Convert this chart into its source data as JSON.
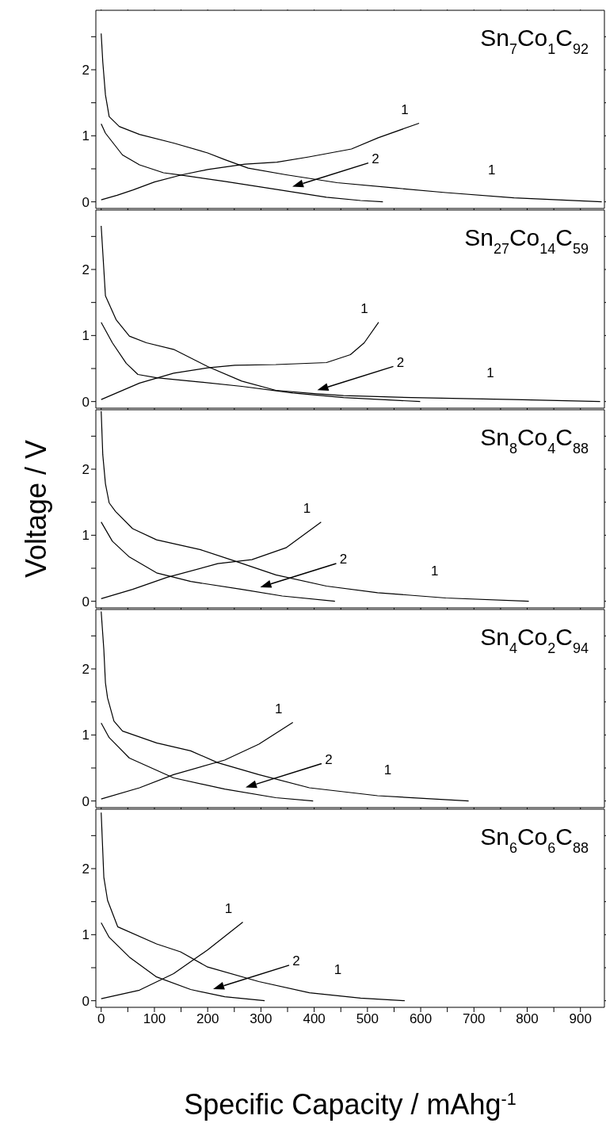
{
  "chart_data": [
    {
      "type": "line",
      "title": "Sn$_{7}$Co$_{1}$C$_{92}$",
      "xlim": [
        -10,
        945
      ],
      "ylim": [
        -0.1,
        2.9
      ],
      "xticks": [
        0,
        {
          "value": 50,
          "label": null
        },
        100,
        {
          "value": 150,
          "label": null
        },
        200,
        {
          "value": 250,
          "label": null
        },
        300,
        {
          "value": 350,
          "label": null
        },
        400,
        {
          "value": 450,
          "label": null
        },
        500,
        {
          "value": 550,
          "label": null
        },
        600,
        {
          "value": 650,
          "label": null
        },
        700,
        {
          "value": 750,
          "label": null
        },
        800,
        {
          "value": 850,
          "label": null
        },
        900
      ],
      "yticks": [
        0,
        {
          "value": 0.5,
          "label": null
        },
        1,
        {
          "value": 1.5,
          "label": null
        },
        2,
        {
          "value": 2.5,
          "label": null
        }
      ],
      "tick_labels": "y",
      "annotations": [
        "2"
      ],
      "series": [
        {
          "name": "1",
          "color": "#000000",
          "x": [
            0,
            3,
            8,
            15,
            34,
            72,
            136,
            200,
            232,
            276,
            347,
            443,
            551,
            647,
            775,
            940
          ],
          "values": [
            2.55,
            2.12,
            1.62,
            1.29,
            1.14,
            1.02,
            0.89,
            0.74,
            0.64,
            0.51,
            0.41,
            0.29,
            0.21,
            0.14,
            0.06,
            0
          ]
        },
        {
          "name": "1",
          "color": "#000000",
          "x": [
            0,
            30,
            60,
            100,
            152,
            200,
            270,
            330,
            390,
            470,
            520,
            597
          ],
          "values": [
            0.03,
            0.1,
            0.18,
            0.3,
            0.41,
            0.49,
            0.57,
            0.6,
            0.68,
            0.8,
            0.97,
            1.19
          ]
        },
        {
          "color": "#000000",
          "x": [
            0,
            8,
            40,
            72,
            117,
            155,
            232,
            328,
            423,
            487,
            529
          ],
          "values": [
            1.18,
            1.04,
            0.71,
            0.56,
            0.44,
            0.4,
            0.31,
            0.19,
            0.07,
            0.02,
            0
          ]
        }
      ]
    },
    {
      "type": "line",
      "title": "Sn$_{27}$Co$_{14}$C$_{59}$",
      "xlim": [
        -10,
        945
      ],
      "ylim": [
        -0.1,
        2.9
      ],
      "xticks": [
        0,
        {
          "value": 50,
          "label": null
        },
        100,
        {
          "value": 150,
          "label": null
        },
        200,
        {
          "value": 250,
          "label": null
        },
        300,
        {
          "value": 350,
          "label": null
        },
        400,
        {
          "value": 450,
          "label": null
        },
        500,
        {
          "value": 550,
          "label": null
        },
        600,
        {
          "value": 650,
          "label": null
        },
        700,
        {
          "value": 750,
          "label": null
        },
        800,
        {
          "value": 850,
          "label": null
        },
        900
      ],
      "yticks": [
        0,
        {
          "value": 0.5,
          "label": null
        },
        1,
        {
          "value": 1.5,
          "label": null
        },
        2,
        {
          "value": 2.5,
          "label": null
        }
      ],
      "tick_labels": "y",
      "annotations": [
        "2"
      ],
      "series": [
        {
          "name": "1",
          "color": "#000000",
          "x": [
            0,
            5,
            8,
            28,
            53,
            85,
            136,
            200,
            264,
            328,
            400,
            455,
            583,
            775,
            937
          ],
          "values": [
            2.66,
            2.0,
            1.6,
            1.24,
            0.99,
            0.89,
            0.79,
            0.53,
            0.31,
            0.17,
            0.12,
            0.09,
            0.06,
            0.03,
            0
          ]
        },
        {
          "name": "1",
          "color": "#000000",
          "x": [
            0,
            72,
            136,
            200,
            251,
            328,
            423,
            468,
            494,
            521
          ],
          "values": [
            0.03,
            0.28,
            0.43,
            0.51,
            0.55,
            0.56,
            0.59,
            0.71,
            0.89,
            1.2
          ]
        },
        {
          "color": "#000000",
          "x": [
            0,
            21,
            47,
            69,
            104,
            168,
            264,
            360,
            455,
            599
          ],
          "values": [
            1.2,
            0.89,
            0.58,
            0.41,
            0.36,
            0.31,
            0.23,
            0.13,
            0.06,
            0
          ]
        }
      ]
    },
    {
      "type": "line",
      "title": "Sn$_{8}$Co$_{4}$C$_{88}$",
      "xlim": [
        -10,
        945
      ],
      "ylim": [
        -0.1,
        2.9
      ],
      "ylabel": "Voltage / V",
      "xticks": [
        0,
        {
          "value": 50,
          "label": null
        },
        100,
        {
          "value": 150,
          "label": null
        },
        200,
        {
          "value": 250,
          "label": null
        },
        300,
        {
          "value": 350,
          "label": null
        },
        400,
        {
          "value": 450,
          "label": null
        },
        500,
        {
          "value": 550,
          "label": null
        },
        600,
        {
          "value": 650,
          "label": null
        },
        700,
        {
          "value": 750,
          "label": null
        },
        800,
        {
          "value": 850,
          "label": null
        },
        900
      ],
      "yticks": [
        0,
        {
          "value": 0.5,
          "label": null
        },
        1,
        {
          "value": 1.5,
          "label": null
        },
        2,
        {
          "value": 2.5,
          "label": null
        }
      ],
      "tick_labels": "y",
      "annotations": [
        "2"
      ],
      "series": [
        {
          "name": "1",
          "color": "#000000",
          "x": [
            0,
            3,
            8,
            15,
            27,
            59,
            104,
            187,
            251,
            328,
            423,
            519,
            647,
            803
          ],
          "values": [
            2.88,
            2.22,
            1.78,
            1.49,
            1.36,
            1.1,
            0.93,
            0.78,
            0.61,
            0.4,
            0.23,
            0.13,
            0.05,
            0
          ]
        },
        {
          "name": "1",
          "color": "#000000",
          "x": [
            0,
            59,
            123,
            219,
            283,
            347,
            413
          ],
          "values": [
            0.04,
            0.18,
            0.36,
            0.57,
            0.63,
            0.81,
            1.2
          ]
        },
        {
          "color": "#000000",
          "x": [
            0,
            21,
            53,
            104,
            168,
            264,
            340,
            439
          ],
          "values": [
            1.2,
            0.91,
            0.67,
            0.43,
            0.3,
            0.18,
            0.08,
            0
          ]
        }
      ]
    },
    {
      "type": "line",
      "title": "Sn$_{4}$Co$_{2}$C$_{94}$",
      "xlim": [
        -10,
        945
      ],
      "ylim": [
        -0.1,
        2.9
      ],
      "xticks": [
        0,
        {
          "value": 50,
          "label": null
        },
        100,
        {
          "value": 150,
          "label": null
        },
        200,
        {
          "value": 250,
          "label": null
        },
        300,
        {
          "value": 350,
          "label": null
        },
        400,
        {
          "value": 450,
          "label": null
        },
        500,
        {
          "value": 550,
          "label": null
        },
        600,
        {
          "value": 650,
          "label": null
        },
        700,
        {
          "value": 750,
          "label": null
        },
        800,
        {
          "value": 850,
          "label": null
        },
        900
      ],
      "yticks": [
        0,
        {
          "value": 0.5,
          "label": null
        },
        1,
        {
          "value": 1.5,
          "label": null
        },
        2,
        {
          "value": 2.5,
          "label": null
        }
      ],
      "tick_labels": "y",
      "annotations": [
        "2"
      ],
      "series": [
        {
          "name": "1",
          "color": "#000000",
          "x": [
            0,
            5,
            8,
            12,
            24,
            40,
            104,
            168,
            219,
            296,
            391,
            519,
            690
          ],
          "values": [
            2.87,
            2.29,
            1.79,
            1.56,
            1.21,
            1.06,
            0.88,
            0.76,
            0.58,
            0.4,
            0.2,
            0.08,
            0
          ]
        },
        {
          "name": "1",
          "color": "#000000",
          "x": [
            0,
            72,
            136,
            232,
            296,
            360
          ],
          "values": [
            0.03,
            0.2,
            0.4,
            0.62,
            0.86,
            1.19
          ]
        },
        {
          "color": "#000000",
          "x": [
            0,
            15,
            53,
            136,
            232,
            328,
            398
          ],
          "values": [
            1.18,
            0.96,
            0.65,
            0.35,
            0.18,
            0.05,
            0
          ]
        }
      ]
    },
    {
      "type": "line",
      "title": "Sn$_{6}$Co$_{6}$C$_{88}$",
      "xlim": [
        -10,
        945
      ],
      "ylim": [
        -0.1,
        2.9
      ],
      "xlabel": "Specific Capacity / mAhg$^{-1}$",
      "xticks": [
        0,
        {
          "value": 50,
          "label": null
        },
        100,
        {
          "value": 150,
          "label": null
        },
        200,
        {
          "value": 250,
          "label": null
        },
        300,
        {
          "value": 350,
          "label": null
        },
        400,
        {
          "value": 450,
          "label": null
        },
        500,
        {
          "value": 550,
          "label": null
        },
        600,
        {
          "value": 650,
          "label": null
        },
        700,
        {
          "value": 750,
          "label": null
        },
        800,
        {
          "value": 850,
          "label": null
        },
        900
      ],
      "yticks": [
        0,
        {
          "value": 0.5,
          "label": null
        },
        1,
        {
          "value": 1.5,
          "label": null
        },
        2,
        {
          "value": 2.5,
          "label": null
        }
      ],
      "annotations": [
        "2"
      ],
      "series": [
        {
          "name": "1",
          "color": "#000000",
          "x": [
            0,
            5,
            12,
            31,
            104,
            149,
            200,
            296,
            391,
            487,
            570
          ],
          "values": [
            2.85,
            1.87,
            1.52,
            1.12,
            0.86,
            0.74,
            0.51,
            0.29,
            0.12,
            0.04,
            0
          ]
        },
        {
          "name": "1",
          "color": "#000000",
          "x": [
            0,
            72,
            136,
            200,
            266
          ],
          "values": [
            0.03,
            0.16,
            0.41,
            0.77,
            1.19
          ]
        },
        {
          "color": "#000000",
          "x": [
            0,
            15,
            53,
            104,
            168,
            232,
            307
          ],
          "values": [
            1.18,
            0.96,
            0.66,
            0.36,
            0.17,
            0.06,
            0
          ]
        }
      ]
    }
  ]
}
